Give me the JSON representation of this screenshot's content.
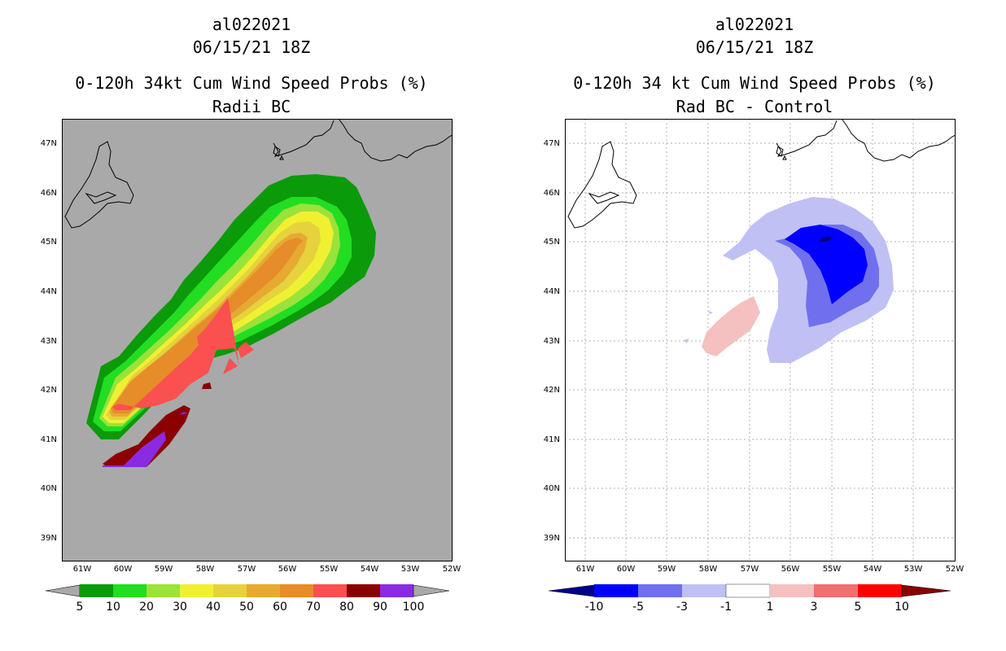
{
  "left_panel": {
    "storm_id": "al022021",
    "datetime": "06/15/21 18Z",
    "title": "0-120h 34kt Cum Wind Speed Probs (%)",
    "subtitle": "Radii BC",
    "background_color": "#a9a9a9",
    "colorbar": {
      "labels": [
        "5",
        "10",
        "20",
        "30",
        "40",
        "50",
        "60",
        "70",
        "80",
        "90",
        "100"
      ],
      "colors": [
        "#0a9a0a",
        "#22dd22",
        "#9be23a",
        "#f0f032",
        "#e6d23c",
        "#e6aa32",
        "#e68c28",
        "#fa5050",
        "#8b0000",
        "#8a2be2"
      ]
    }
  },
  "right_panel": {
    "storm_id": "al022021",
    "datetime": "06/15/21 18Z",
    "title": "0-120h 34 kt Cum Wind Speed Probs (%)",
    "subtitle": "Rad BC - Control",
    "colorbar": {
      "labels": [
        "-10",
        "-5",
        "-3",
        "-1",
        "1",
        "3",
        "5",
        "10"
      ],
      "colors": [
        "#0000ff",
        "#7070ee",
        "#c0c0f5",
        "#ffffff",
        "#f5c0c0",
        "#f07070",
        "#ff0000"
      ],
      "end_colors": [
        "#00008b",
        "#8b0000"
      ]
    }
  },
  "axes": {
    "lat_labels": [
      "47N",
      "46N",
      "45N",
      "44N",
      "43N",
      "42N",
      "41N",
      "40N",
      "39N"
    ],
    "lon_labels": [
      "61W",
      "60W",
      "59W",
      "58W",
      "57W",
      "56W",
      "55W",
      "54W",
      "53W",
      "52W"
    ]
  }
}
